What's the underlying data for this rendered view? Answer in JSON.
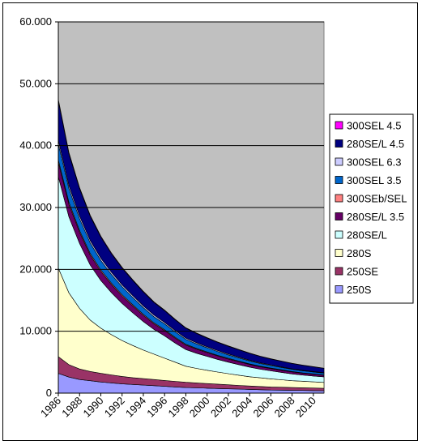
{
  "chart_data": {
    "type": "area",
    "stacked": true,
    "x": [
      "1986",
      "1987",
      "1988",
      "1989",
      "1990",
      "1991",
      "1992",
      "1993",
      "1994",
      "1995",
      "1996",
      "1997",
      "1998",
      "1999",
      "2000",
      "2001",
      "2002",
      "2003",
      "2004",
      "2005",
      "2006",
      "2007",
      "2008",
      "2009",
      "2010",
      "2011"
    ],
    "x_tick_labels": [
      "1986",
      "1988",
      "1990",
      "1992",
      "1994",
      "1996",
      "1998",
      "2000",
      "2002",
      "2004",
      "2006",
      "2008",
      "2010"
    ],
    "y_tick_labels": [
      "0",
      "10.000",
      "20.000",
      "30.000",
      "40.000",
      "50.000",
      "60.000"
    ],
    "ylim": [
      0,
      60000
    ],
    "grid": true,
    "legend_position": "right",
    "plot_background": "#c0c0c0",
    "series": [
      {
        "name": "250S",
        "color": "#9999ff",
        "values": [
          3200,
          2600,
          2200,
          2000,
          1800,
          1650,
          1500,
          1400,
          1300,
          1200,
          1100,
          1000,
          900,
          850,
          800,
          750,
          700,
          650,
          600,
          550,
          500,
          480,
          450,
          430,
          400,
          380
        ]
      },
      {
        "name": "250SE",
        "color": "#993366",
        "values": [
          2700,
          2000,
          1700,
          1500,
          1400,
          1300,
          1200,
          1100,
          1050,
          1000,
          950,
          900,
          850,
          800,
          750,
          700,
          650,
          600,
          550,
          520,
          500,
          480,
          460,
          440,
          420,
          400
        ]
      },
      {
        "name": "280S",
        "color": "#ffffcc",
        "values": [
          14300,
          11600,
          9800,
          8300,
          7300,
          6500,
          5800,
          5200,
          4600,
          4100,
          3600,
          3100,
          2600,
          2350,
          2150,
          1950,
          1800,
          1650,
          1500,
          1400,
          1300,
          1200,
          1100,
          1050,
          1000,
          950
        ]
      },
      {
        "name": "280SE/L",
        "color": "#ccffff",
        "values": [
          14800,
          12300,
          10500,
          8900,
          7700,
          6800,
          6000,
          5300,
          4600,
          4000,
          3600,
          3100,
          2700,
          2450,
          2250,
          2050,
          1850,
          1700,
          1550,
          1400,
          1300,
          1200,
          1100,
          1000,
          950,
          900
        ]
      },
      {
        "name": "280SE/L 3.5",
        "color": "#660066",
        "values": [
          2300,
          2000,
          1800,
          1600,
          1450,
          1300,
          1200,
          1100,
          1000,
          900,
          850,
          780,
          720,
          660,
          600,
          560,
          520,
          480,
          440,
          400,
          370,
          340,
          320,
          300,
          280,
          260
        ]
      },
      {
        "name": "300SEb/SEL",
        "color": "#ff8080",
        "values": [
          400,
          350,
          300,
          270,
          250,
          230,
          210,
          190,
          170,
          160,
          150,
          140,
          130,
          120,
          110,
          100,
          95,
          90,
          85,
          80,
          75,
          70,
          65,
          60,
          55,
          50
        ]
      },
      {
        "name": "300SEL 3.5",
        "color": "#0066cc",
        "values": [
          2600,
          2200,
          1900,
          1700,
          1550,
          1400,
          1300,
          1200,
          1100,
          1000,
          950,
          880,
          800,
          740,
          680,
          620,
          570,
          520,
          480,
          440,
          410,
          380,
          350,
          330,
          310,
          290
        ]
      },
      {
        "name": "300SEL 6.3",
        "color": "#ccccff",
        "values": [
          600,
          500,
          450,
          400,
          370,
          340,
          310,
          290,
          270,
          250,
          230,
          210,
          190,
          175,
          160,
          150,
          140,
          130,
          120,
          110,
          100,
          95,
          90,
          85,
          80,
          75
        ]
      },
      {
        "name": "280SE/L 4.5",
        "color": "#000080",
        "values": [
          6300,
          5100,
          4400,
          3900,
          3400,
          3000,
          2700,
          2450,
          2250,
          2050,
          1900,
          1750,
          1600,
          1500,
          1400,
          1320,
          1250,
          1180,
          1100,
          1030,
          960,
          900,
          850,
          800,
          750,
          700
        ]
      },
      {
        "name": "300SEL 4.5",
        "color": "#ff00ff",
        "values": [
          300,
          250,
          200,
          180,
          160,
          140,
          130,
          120,
          110,
          100,
          95,
          90,
          85,
          80,
          75,
          70,
          65,
          60,
          55,
          50,
          48,
          45,
          42,
          40,
          38,
          35
        ]
      }
    ]
  }
}
